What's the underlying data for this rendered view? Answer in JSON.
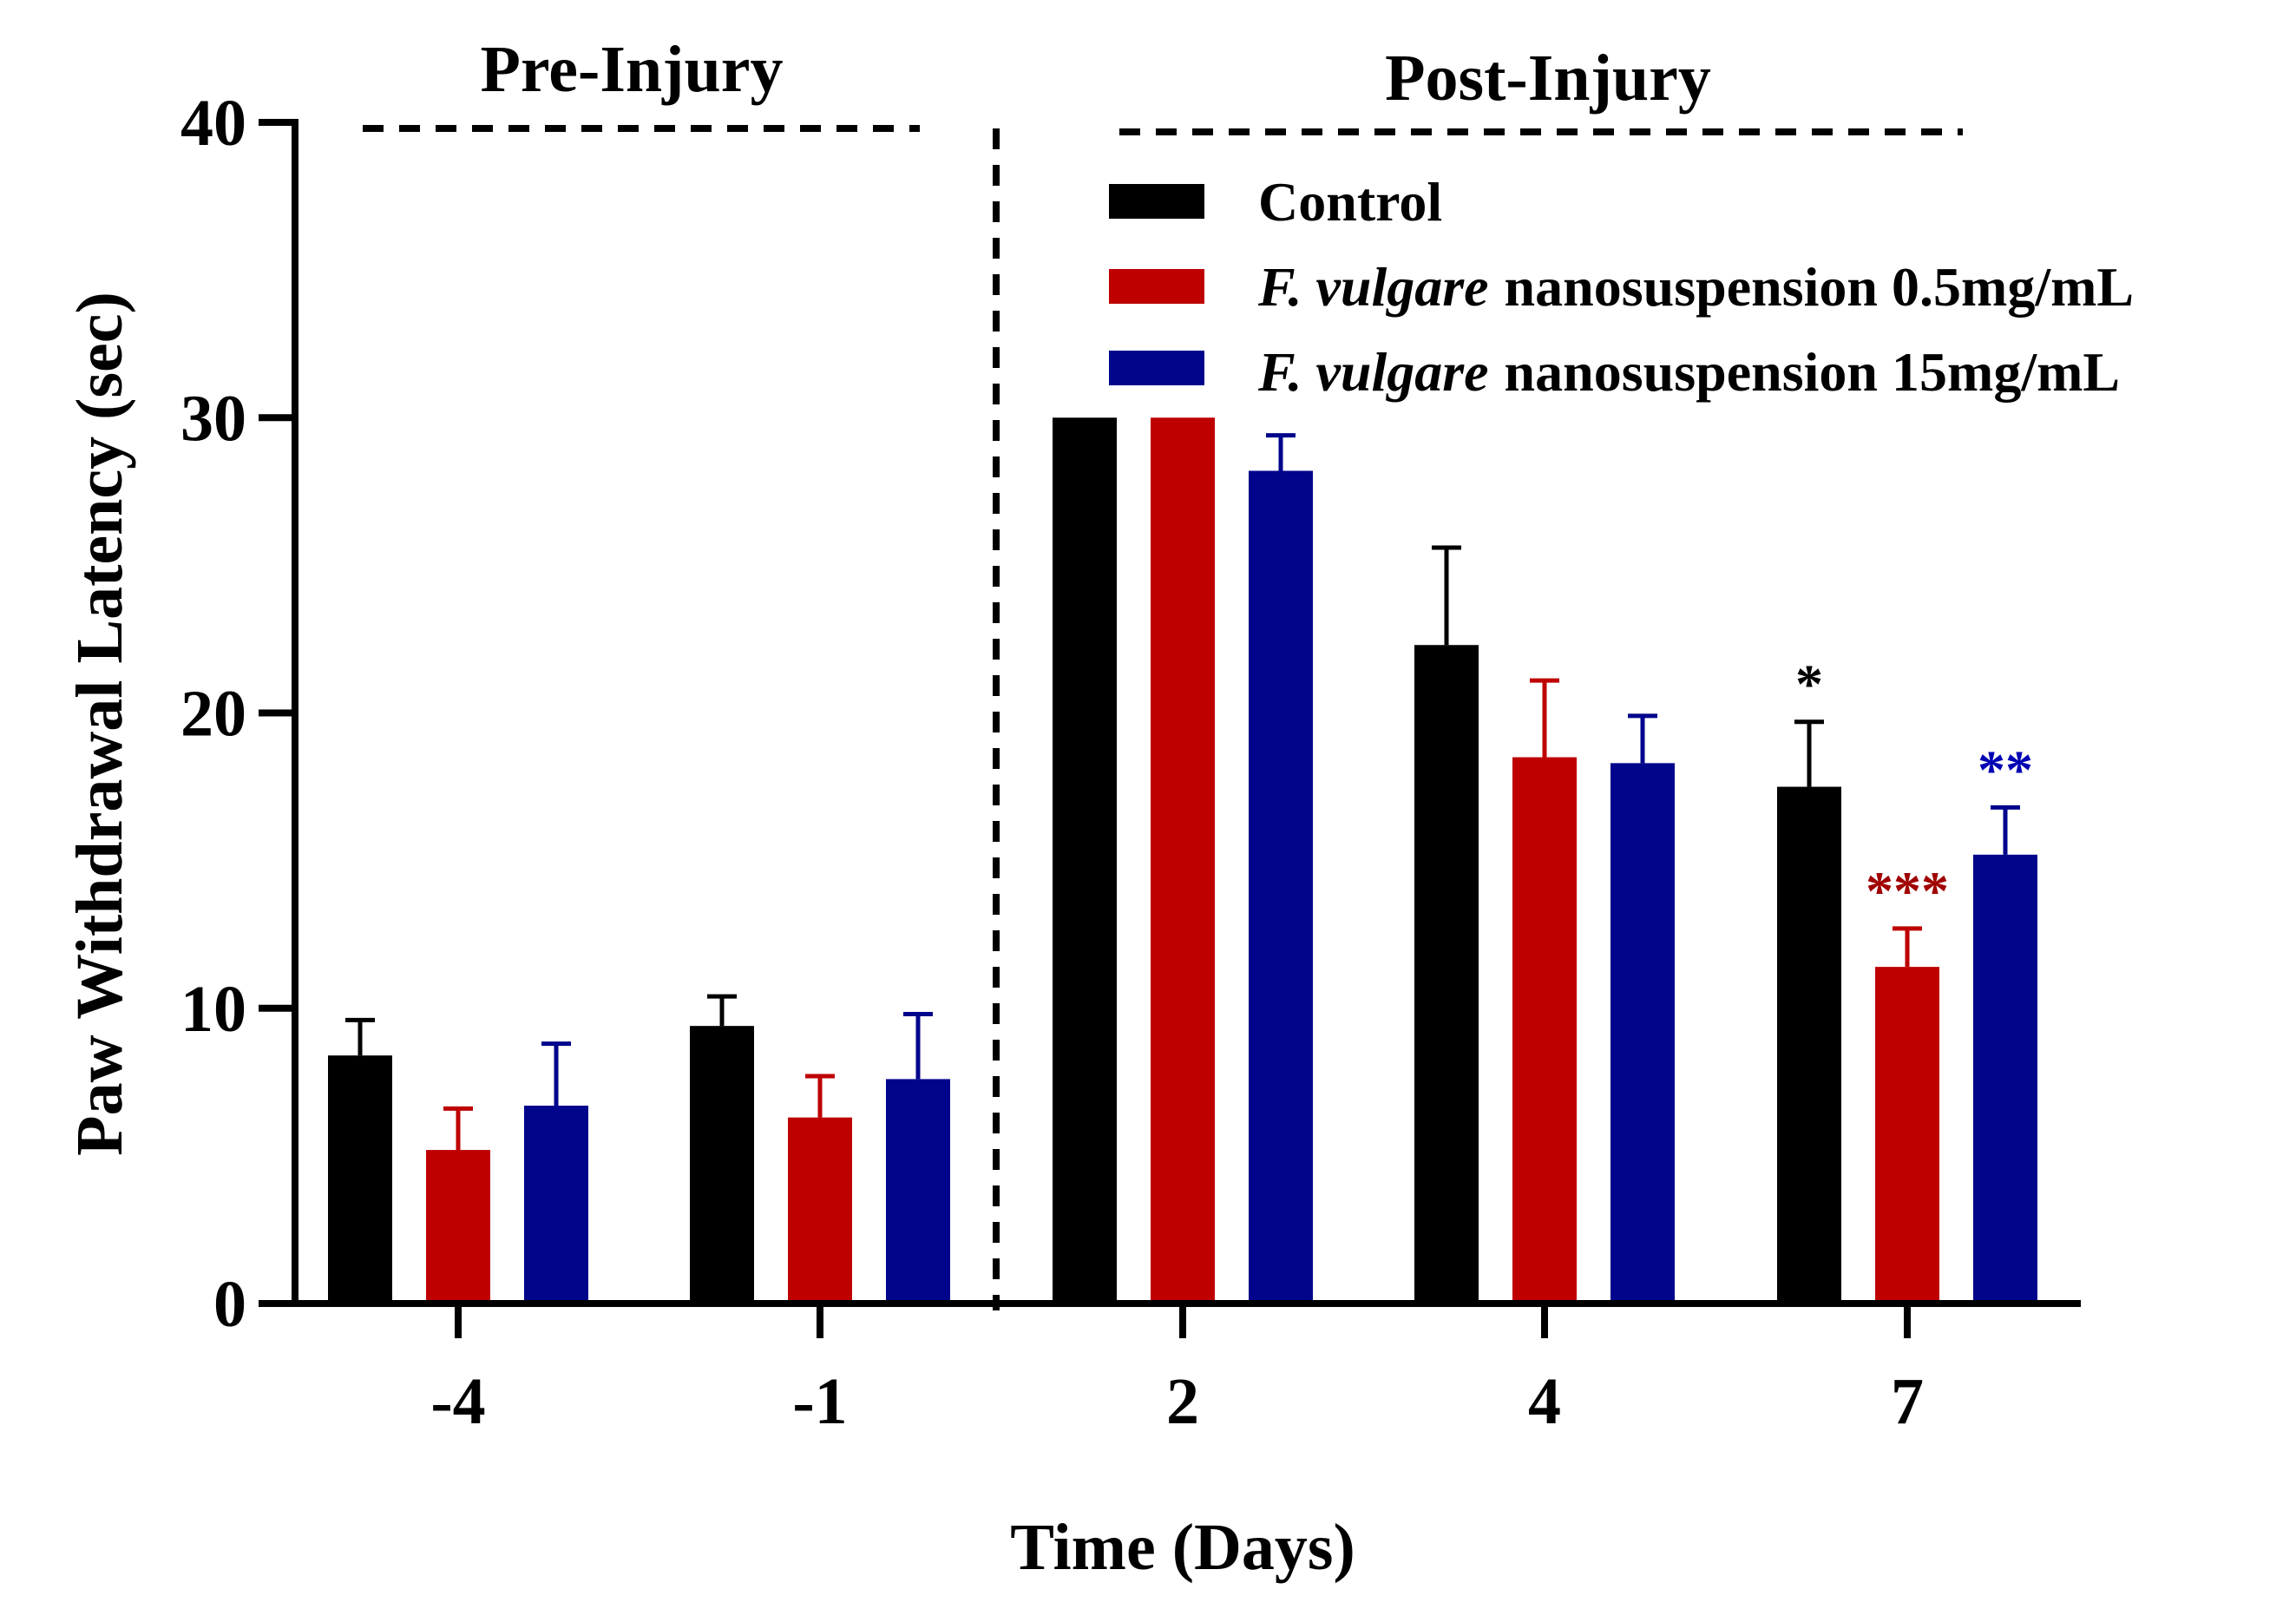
{
  "chart_data": {
    "type": "bar",
    "title": "",
    "xlabel": "Time (Days)",
    "ylabel": "Paw Withdrawal Latency (sec)",
    "ylim": [
      0,
      40
    ],
    "yticks": [
      0,
      10,
      20,
      30,
      40
    ],
    "categories": [
      "-4",
      "-1",
      "2",
      "4",
      "7"
    ],
    "section_labels": {
      "pre": "Pre-Injury",
      "post": "Post-Injury"
    },
    "series": [
      {
        "name": "Control",
        "color": "#000000",
        "values": [
          8.4,
          9.4,
          30.0,
          22.3,
          17.5
        ],
        "errors": [
          1.2,
          1.0,
          0.0,
          3.3,
          2.2
        ],
        "significance": [
          "",
          "",
          "",
          "",
          "*"
        ]
      },
      {
        "name_italic": "F. vulgare",
        "name_rest": "nanosuspension 0.5mg/mL",
        "color": "#be0000",
        "values": [
          5.2,
          6.3,
          30.0,
          18.5,
          11.4
        ],
        "errors": [
          1.4,
          1.4,
          0.0,
          2.6,
          1.3
        ],
        "significance": [
          "",
          "",
          "",
          "",
          "***"
        ]
      },
      {
        "name_italic": "F. vulgare",
        "name_rest": "nanosuspension 15mg/mL",
        "color": "#00058c",
        "values": [
          6.7,
          7.6,
          28.2,
          18.3,
          15.2
        ],
        "errors": [
          2.1,
          2.2,
          1.2,
          1.6,
          1.6
        ],
        "significance": [
          "",
          "",
          "",
          "",
          "**"
        ]
      }
    ],
    "significance_colors": [
      "#000000",
      "#a00000",
      "#0000b4"
    ],
    "grid": false,
    "legend": "top-right"
  }
}
